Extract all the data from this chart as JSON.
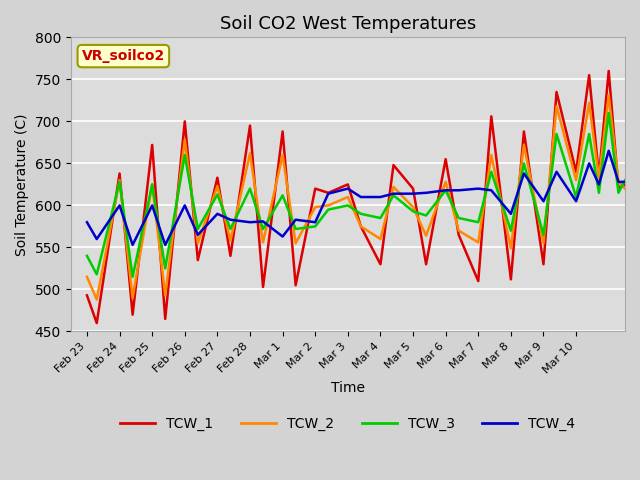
{
  "title": "Soil CO2 West Temperatures",
  "xlabel": "Time",
  "ylabel": "Soil Temperature (C)",
  "ylim": [
    450,
    800
  ],
  "xlim": [
    0,
    16.5
  ],
  "background_color": "#dcdcdc",
  "plot_bg_color": "#dcdcdc",
  "annotation_text": "VR_soilco2",
  "annotation_bg": "#ffffcc",
  "annotation_border": "#888800",
  "colors": {
    "TCW_1": "#dd0000",
    "TCW_2": "#ff8800",
    "TCW_3": "#00cc00",
    "TCW_4": "#0000cc"
  },
  "xtick_labels": [
    "Feb 23",
    "Feb 24",
    "Feb 25",
    "Feb 26",
    "Feb 27",
    "Feb 28",
    "Mar 1",
    "Mar 2",
    "Mar 3",
    "Mar 4",
    "Mar 5",
    "Mar 6",
    "Mar 7",
    "Mar 8",
    "Mar 9",
    "Mar 10"
  ],
  "xtick_positions": [
    0,
    1,
    2,
    3,
    4,
    5,
    6,
    7,
    8,
    9,
    10,
    11,
    12,
    13,
    14,
    15
  ],
  "TCW_1": [
    493,
    460,
    638,
    470,
    672,
    465,
    700,
    535,
    633,
    540,
    695,
    503,
    688,
    505,
    620,
    615,
    625,
    575,
    530,
    648,
    620,
    530,
    655,
    565,
    510,
    706,
    512,
    688,
    530,
    735,
    640,
    755,
    635,
    760,
    620,
    625
  ],
  "TCW_2": [
    515,
    488,
    630,
    490,
    625,
    493,
    678,
    555,
    623,
    558,
    662,
    556,
    660,
    555,
    598,
    600,
    610,
    575,
    560,
    622,
    598,
    564,
    628,
    570,
    556,
    660,
    549,
    672,
    555,
    718,
    630,
    722,
    632,
    731,
    628,
    620
  ],
  "TCW_3": [
    540,
    518,
    628,
    515,
    625,
    525,
    660,
    572,
    613,
    572,
    620,
    572,
    612,
    572,
    575,
    595,
    600,
    590,
    585,
    612,
    593,
    588,
    618,
    585,
    580,
    640,
    570,
    650,
    565,
    685,
    610,
    685,
    615,
    710,
    615,
    630
  ],
  "TCW_4": [
    580,
    560,
    600,
    553,
    600,
    553,
    600,
    565,
    590,
    583,
    580,
    581,
    563,
    583,
    580,
    614,
    620,
    610,
    610,
    614,
    614,
    615,
    618,
    618,
    620,
    618,
    590,
    638,
    605,
    640,
    605,
    650,
    625,
    665,
    628,
    628
  ],
  "t": [
    0,
    0.3,
    1,
    1.4,
    2,
    2.4,
    3,
    3.4,
    4,
    4.4,
    5,
    5.4,
    6,
    6.4,
    7,
    7.4,
    8,
    8.4,
    9,
    9.4,
    10,
    10.4,
    11,
    11.4,
    12,
    12.4,
    13,
    13.4,
    14,
    14.4,
    15,
    15.4,
    15.7,
    16,
    16.3,
    16.5
  ]
}
